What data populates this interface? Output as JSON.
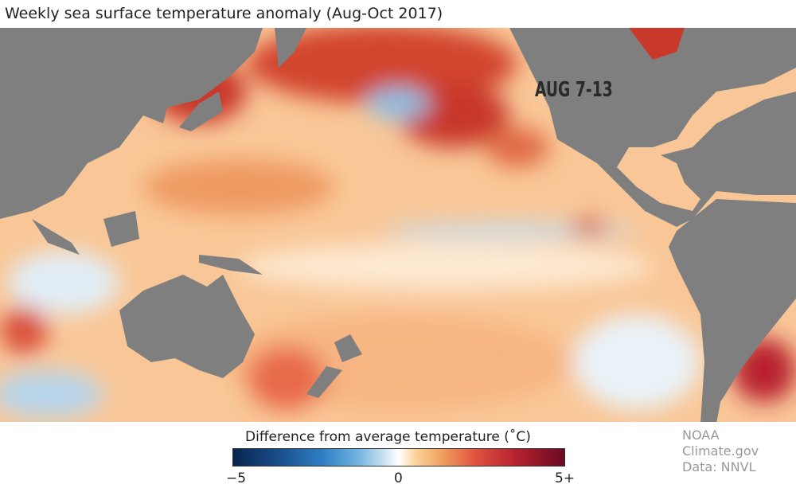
{
  "title": "Weekly sea surface temperature anomaly (Aug-Oct 2017)",
  "week_label": "AUG 7-13",
  "legend": {
    "title": "Difference from average temperature (˚C)",
    "ticks": [
      "−5",
      "0",
      "5+"
    ],
    "range": [
      -5,
      5
    ],
    "colors": [
      "#08254f",
      "#2f7fc4",
      "#ffffff",
      "#f0a060",
      "#b8222f",
      "#6a0a22"
    ]
  },
  "credit": {
    "source": "NOAA Climate.gov",
    "data": "Data: NNVL"
  },
  "colors": {
    "land": "#7f7f7f",
    "ocean_base": "#f9c797"
  }
}
